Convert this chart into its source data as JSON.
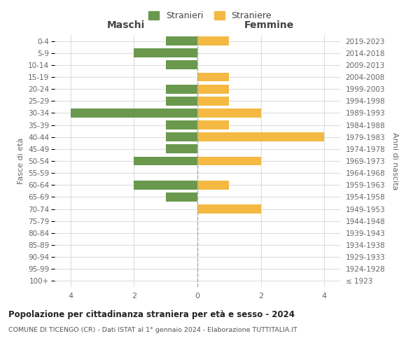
{
  "age_groups": [
    "100+",
    "95-99",
    "90-94",
    "85-89",
    "80-84",
    "75-79",
    "70-74",
    "65-69",
    "60-64",
    "55-59",
    "50-54",
    "45-49",
    "40-44",
    "35-39",
    "30-34",
    "25-29",
    "20-24",
    "15-19",
    "10-14",
    "5-9",
    "0-4"
  ],
  "birth_years": [
    "≤ 1923",
    "1924-1928",
    "1929-1933",
    "1934-1938",
    "1939-1943",
    "1944-1948",
    "1949-1953",
    "1954-1958",
    "1959-1963",
    "1964-1968",
    "1969-1973",
    "1974-1978",
    "1979-1983",
    "1984-1988",
    "1989-1993",
    "1994-1998",
    "1999-2003",
    "2004-2008",
    "2009-2013",
    "2014-2018",
    "2019-2023"
  ],
  "maschi": [
    0,
    0,
    0,
    0,
    0,
    0,
    0,
    1,
    2,
    0,
    2,
    1,
    1,
    1,
    4,
    1,
    1,
    0,
    1,
    2,
    1
  ],
  "femmine": [
    0,
    0,
    0,
    0,
    0,
    0,
    2,
    0,
    1,
    0,
    2,
    0,
    4,
    1,
    2,
    1,
    1,
    1,
    0,
    0,
    1
  ],
  "maschi_color": "#6a994e",
  "femmine_color": "#f4b942",
  "title": "Popolazione per cittadinanza straniera per età e sesso - 2024",
  "subtitle": "COMUNE DI TICENGO (CR) - Dati ISTAT al 1° gennaio 2024 - Elaborazione TUTTITALIA.IT",
  "legend_maschi": "Stranieri",
  "legend_femmine": "Straniere",
  "xlabel_left": "Maschi",
  "xlabel_right": "Femmine",
  "ylabel_left": "Fasce di età",
  "ylabel_right": "Anni di nascita",
  "xlim": 4.5,
  "background_color": "#ffffff",
  "grid_color": "#dddddd",
  "bar_height": 0.75
}
